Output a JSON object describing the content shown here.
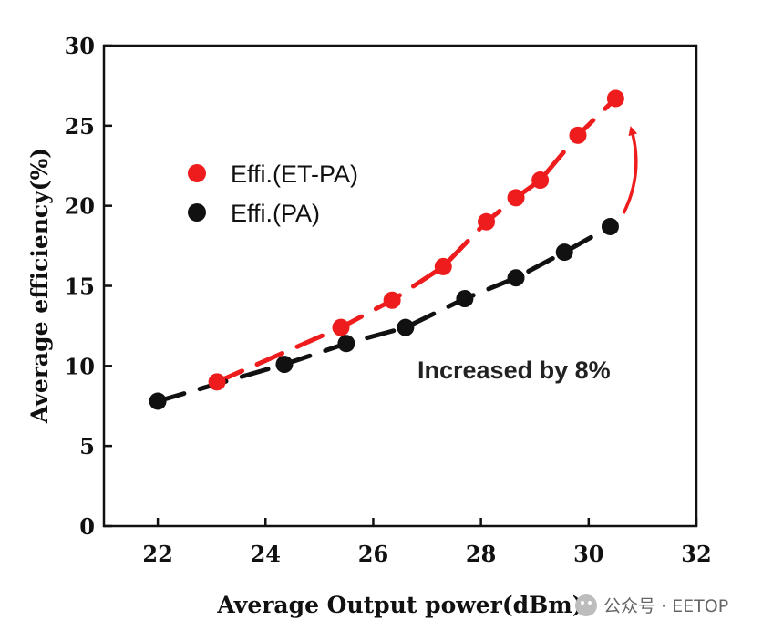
{
  "chart_data": {
    "type": "scatter",
    "xlabel": "Average Output power(dBm)",
    "ylabel": "Average efficiency(%)",
    "xlim": [
      21,
      32
    ],
    "ylim": [
      0,
      30
    ],
    "x_ticks": [
      "22",
      "24",
      "26",
      "28",
      "30",
      "32"
    ],
    "y_ticks": [
      "0",
      "5",
      "10",
      "15",
      "20",
      "25",
      "30"
    ],
    "grid": false,
    "legend_position": "upper-left",
    "series": [
      {
        "name": "Effi.(ET-PA)",
        "color": "#ee1c1c",
        "line_style": "dashed",
        "x": [
          23.1,
          25.4,
          26.35,
          27.3,
          28.1,
          28.65,
          29.1,
          29.8,
          30.5
        ],
        "y": [
          9.0,
          12.4,
          14.1,
          16.2,
          19.0,
          20.5,
          21.6,
          24.4,
          26.7
        ]
      },
      {
        "name": "Effi.(PA)",
        "color": "#111111",
        "line_style": "dashed",
        "x": [
          22.0,
          24.35,
          25.5,
          26.6,
          27.7,
          28.65,
          29.55,
          30.4
        ],
        "y": [
          7.8,
          10.1,
          11.4,
          12.4,
          14.2,
          15.5,
          17.1,
          18.7
        ]
      }
    ],
    "annotations": [
      {
        "text": "Increased by 8%",
        "arrow_color": "#ee1c1c"
      }
    ]
  },
  "watermark": {
    "text": "公众号 · EETOP",
    "icon": "wechat-icon"
  }
}
